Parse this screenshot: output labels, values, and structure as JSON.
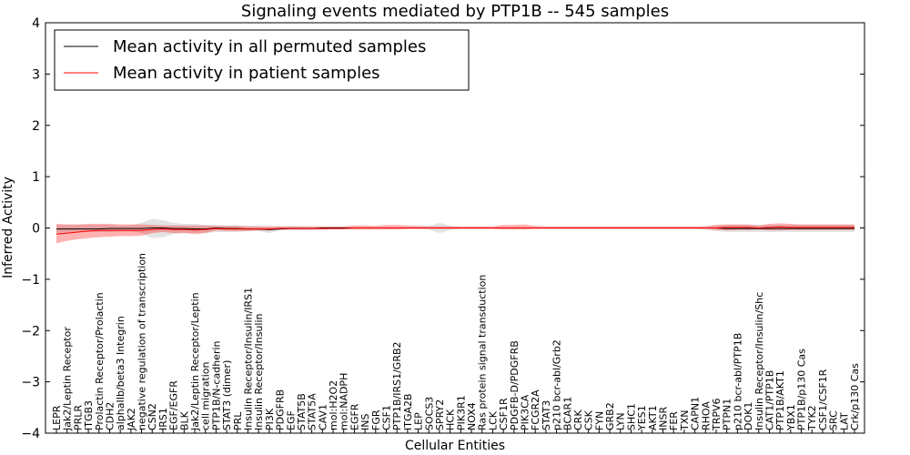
{
  "chart_data": {
    "type": "line",
    "title": "Signaling events mediated by PTP1B -- 545 samples",
    "xlabel": "Cellular Entities",
    "ylabel": "Inferred Activity",
    "ylim": [
      -4,
      4
    ],
    "yticks": [
      -4,
      -3,
      -2,
      -1,
      0,
      1,
      2,
      3,
      4
    ],
    "ytick_labels": [
      "−4",
      "−3",
      "−2",
      "−1",
      "0",
      "1",
      "2",
      "3",
      "4"
    ],
    "grid": false,
    "legend_position": "top-left",
    "categories": [
      "LEPR",
      "Jak2/Leptin Receptor",
      "PRLR",
      "ITGB3",
      "Prolactin Receptor/Prolactin",
      "CDH2",
      "alphaIIb/beta3 Integrin",
      "JAK2",
      "negative regulation of transcription",
      "CSN2",
      "IRS1",
      "EGF/EGFR",
      "BLK",
      "Jak2/Leptin Receptor/Leptin",
      "cell migration",
      "PTP1B/N-cadherin",
      "STAT3 (dimer)",
      "PRL",
      "Insulin Receptor/Insulin/IRS1",
      "Insulin Receptor/Insulin",
      "PI3K",
      "PDGFRB",
      "EGF",
      "STAT5B",
      "STAT5A",
      "CAV1",
      "mol:H2O2",
      "mol:NADPH",
      "EGFR",
      "INS",
      "FGR",
      "CSF1",
      "PTP1B/IRS1/GRB2",
      "ITGA2B",
      "LEP",
      "SOCS3",
      "SPRY2",
      "HCK",
      "PIK3R1",
      "NOX4",
      "Ras protein signal transduction",
      "LCK",
      "CSF1R",
      "PDGFB-D/PDGFRB",
      "PIK3CA",
      "FCGR2A",
      "STAT3",
      "p210 bcr-abl/Grb2",
      "BCAR1",
      "CRK",
      "CSK",
      "FYN",
      "GRB2",
      "LYN",
      "SHC1",
      "YES1",
      "AKT1",
      "INSR",
      "FER",
      "TXN",
      "CAPN1",
      "RHOA",
      "TRPV6",
      "PTPN1",
      "p210 bcr-abl/PTP1B",
      "DOK1",
      "Insulin Receptor/Insulin/Shc",
      "CAT1/PTP1B",
      "PTP1B/AKT1",
      "YBX1",
      "PTP1B/p130 Cas",
      "TYK2",
      "CSF1/CSF1R",
      "SRC",
      "LAT",
      "Crk/p130 Cas"
    ],
    "series": [
      {
        "name": "Mean activity in all permuted samples",
        "color": "#000000",
        "values": [
          -0.02,
          -0.02,
          -0.02,
          -0.02,
          -0.02,
          -0.01,
          -0.01,
          -0.01,
          -0.01,
          0.0,
          0.0,
          -0.01,
          -0.01,
          -0.02,
          -0.02,
          0.0,
          -0.01,
          -0.01,
          -0.02,
          -0.02,
          -0.03,
          -0.02,
          -0.01,
          -0.01,
          -0.01,
          0.0,
          0.0,
          0.0,
          0.0,
          0.0,
          0.0,
          0.0,
          0.0,
          0.0,
          0.0,
          0.0,
          0.0,
          0.0,
          0.0,
          0.0,
          0.0,
          0.0,
          0.0,
          0.0,
          0.0,
          0.0,
          0.0,
          0.0,
          0.0,
          0.0,
          0.0,
          0.0,
          0.0,
          0.0,
          0.0,
          0.0,
          0.0,
          0.0,
          0.0,
          0.0,
          0.0,
          0.0,
          0.0,
          -0.01,
          -0.01,
          -0.01,
          -0.01,
          -0.01,
          -0.01,
          -0.01,
          -0.01,
          -0.01,
          -0.01,
          -0.01,
          -0.01,
          -0.01
        ],
        "band_lower": [
          -0.1,
          -0.08,
          -0.08,
          -0.08,
          -0.08,
          -0.08,
          -0.07,
          -0.07,
          -0.1,
          -0.2,
          -0.18,
          -0.12,
          -0.1,
          -0.1,
          -0.1,
          -0.08,
          -0.08,
          -0.08,
          -0.06,
          -0.06,
          -0.1,
          -0.05,
          -0.04,
          -0.04,
          -0.04,
          -0.02,
          -0.02,
          -0.02,
          -0.02,
          -0.02,
          -0.02,
          -0.02,
          -0.02,
          -0.02,
          -0.02,
          -0.03,
          -0.1,
          -0.04,
          -0.02,
          -0.02,
          -0.02,
          -0.02,
          -0.02,
          -0.02,
          -0.02,
          -0.02,
          -0.02,
          -0.02,
          -0.02,
          -0.02,
          -0.02,
          -0.02,
          -0.02,
          -0.02,
          -0.02,
          -0.02,
          -0.02,
          -0.02,
          -0.02,
          -0.02,
          -0.02,
          -0.04,
          -0.06,
          -0.08,
          -0.08,
          -0.08,
          -0.08,
          -0.08,
          -0.08,
          -0.08,
          -0.08,
          -0.08,
          -0.08,
          -0.08,
          -0.08,
          -0.08
        ],
        "band_upper": [
          0.06,
          0.06,
          0.06,
          0.06,
          0.06,
          0.06,
          0.05,
          0.05,
          0.1,
          0.18,
          0.15,
          0.1,
          0.08,
          0.08,
          0.06,
          0.06,
          0.05,
          0.05,
          0.04,
          0.04,
          0.03,
          0.03,
          0.03,
          0.03,
          0.02,
          0.02,
          0.02,
          0.02,
          0.02,
          0.02,
          0.02,
          0.02,
          0.02,
          0.02,
          0.03,
          0.04,
          0.1,
          0.04,
          0.02,
          0.02,
          0.02,
          0.02,
          0.02,
          0.02,
          0.02,
          0.02,
          0.02,
          0.02,
          0.02,
          0.02,
          0.02,
          0.02,
          0.02,
          0.02,
          0.02,
          0.02,
          0.02,
          0.02,
          0.02,
          0.02,
          0.02,
          0.03,
          0.05,
          0.06,
          0.06,
          0.06,
          0.06,
          0.06,
          0.06,
          0.06,
          0.06,
          0.06,
          0.06,
          0.06,
          0.06,
          0.06
        ]
      },
      {
        "name": "Mean activity in patient samples",
        "color": "#ff0000",
        "values": [
          -0.12,
          -0.1,
          -0.08,
          -0.06,
          -0.05,
          -0.05,
          -0.05,
          -0.05,
          -0.05,
          -0.03,
          -0.02,
          -0.03,
          -0.03,
          -0.04,
          -0.03,
          -0.01,
          -0.02,
          -0.02,
          -0.02,
          -0.02,
          -0.02,
          -0.01,
          -0.01,
          -0.01,
          -0.01,
          -0.01,
          -0.01,
          -0.01,
          0.0,
          0.0,
          0.0,
          0.0,
          0.0,
          0.0,
          0.0,
          0.0,
          0.0,
          0.0,
          0.0,
          0.0,
          0.0,
          0.0,
          0.0,
          0.0,
          0.0,
          0.0,
          0.0,
          0.0,
          0.0,
          0.0,
          0.0,
          0.0,
          0.0,
          0.0,
          0.0,
          0.0,
          0.0,
          0.0,
          0.0,
          0.0,
          0.0,
          0.0,
          0.0,
          0.01,
          0.01,
          0.01,
          0.0,
          0.01,
          0.02,
          0.01,
          0.01,
          0.01,
          0.01,
          0.01,
          0.01,
          0.01
        ],
        "band_lower": [
          -0.3,
          -0.25,
          -0.22,
          -0.2,
          -0.18,
          -0.17,
          -0.16,
          -0.16,
          -0.15,
          -0.1,
          -0.08,
          -0.1,
          -0.1,
          -0.12,
          -0.1,
          -0.05,
          -0.06,
          -0.06,
          -0.06,
          -0.05,
          -0.05,
          -0.03,
          -0.03,
          -0.03,
          -0.03,
          -0.03,
          -0.02,
          -0.02,
          -0.03,
          -0.03,
          -0.03,
          -0.03,
          -0.03,
          -0.02,
          -0.02,
          -0.02,
          -0.02,
          -0.02,
          -0.02,
          -0.02,
          -0.02,
          -0.02,
          -0.03,
          -0.03,
          -0.03,
          -0.02,
          -0.02,
          -0.02,
          -0.02,
          -0.02,
          -0.02,
          -0.02,
          -0.02,
          -0.02,
          -0.02,
          -0.02,
          -0.02,
          -0.02,
          -0.02,
          -0.02,
          -0.02,
          -0.02,
          -0.04,
          -0.05,
          -0.04,
          -0.04,
          -0.03,
          -0.05,
          -0.05,
          -0.04,
          -0.04,
          -0.04,
          -0.04,
          -0.04,
          -0.04,
          -0.04
        ],
        "band_upper": [
          0.08,
          0.07,
          0.07,
          0.08,
          0.08,
          0.08,
          0.07,
          0.07,
          0.07,
          0.06,
          0.05,
          0.05,
          0.05,
          0.05,
          0.05,
          0.04,
          0.04,
          0.04,
          0.03,
          0.03,
          0.03,
          0.03,
          0.03,
          0.03,
          0.03,
          0.03,
          0.03,
          0.03,
          0.05,
          0.05,
          0.04,
          0.06,
          0.06,
          0.05,
          0.04,
          0.03,
          0.03,
          0.03,
          0.03,
          0.03,
          0.03,
          0.03,
          0.06,
          0.06,
          0.07,
          0.04,
          0.03,
          0.03,
          0.03,
          0.03,
          0.03,
          0.03,
          0.03,
          0.03,
          0.03,
          0.03,
          0.03,
          0.03,
          0.03,
          0.03,
          0.03,
          0.03,
          0.06,
          0.07,
          0.07,
          0.07,
          0.05,
          0.08,
          0.09,
          0.08,
          0.07,
          0.07,
          0.07,
          0.07,
          0.07,
          0.07
        ]
      }
    ]
  }
}
